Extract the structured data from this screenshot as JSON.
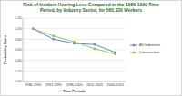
{
  "chart_data": {
    "type": "line",
    "title": "Risk of Incident Hearing Loss Compared to the 1986-1990 Time Period, by Industry Sector, for 560,320 Workers",
    "x_label": "Time Periods",
    "y_label": "Probability Ratio",
    "categories": [
      "1986-1990",
      "1991-1995",
      "1996-2000",
      "2001-2005",
      "2006-2010"
    ],
    "series": [
      {
        "name": "All Industries",
        "color": "#4f81bd",
        "marker": "diamond",
        "values": [
          1.0,
          0.8,
          0.72,
          0.7,
          0.55
        ]
      },
      {
        "name": "Construction",
        "color": "#9bbb59",
        "marker": "square",
        "values": [
          1.0,
          0.86,
          0.75,
          0.62,
          0.52
        ]
      }
    ],
    "ylim": [
      0,
      1.2
    ],
    "yticks": [
      {
        "value": 0,
        "label": "0.00"
      },
      {
        "value": 0.2,
        "label": "0.20"
      },
      {
        "value": 0.4,
        "label": "0.40"
      },
      {
        "value": 0.6,
        "label": "0.60"
      },
      {
        "value": 0.8,
        "label": "0.80"
      },
      {
        "value": 1.0,
        "label": "1.00"
      },
      {
        "value": 1.2,
        "label": "1.20"
      }
    ],
    "grid": true,
    "legend": "right"
  }
}
